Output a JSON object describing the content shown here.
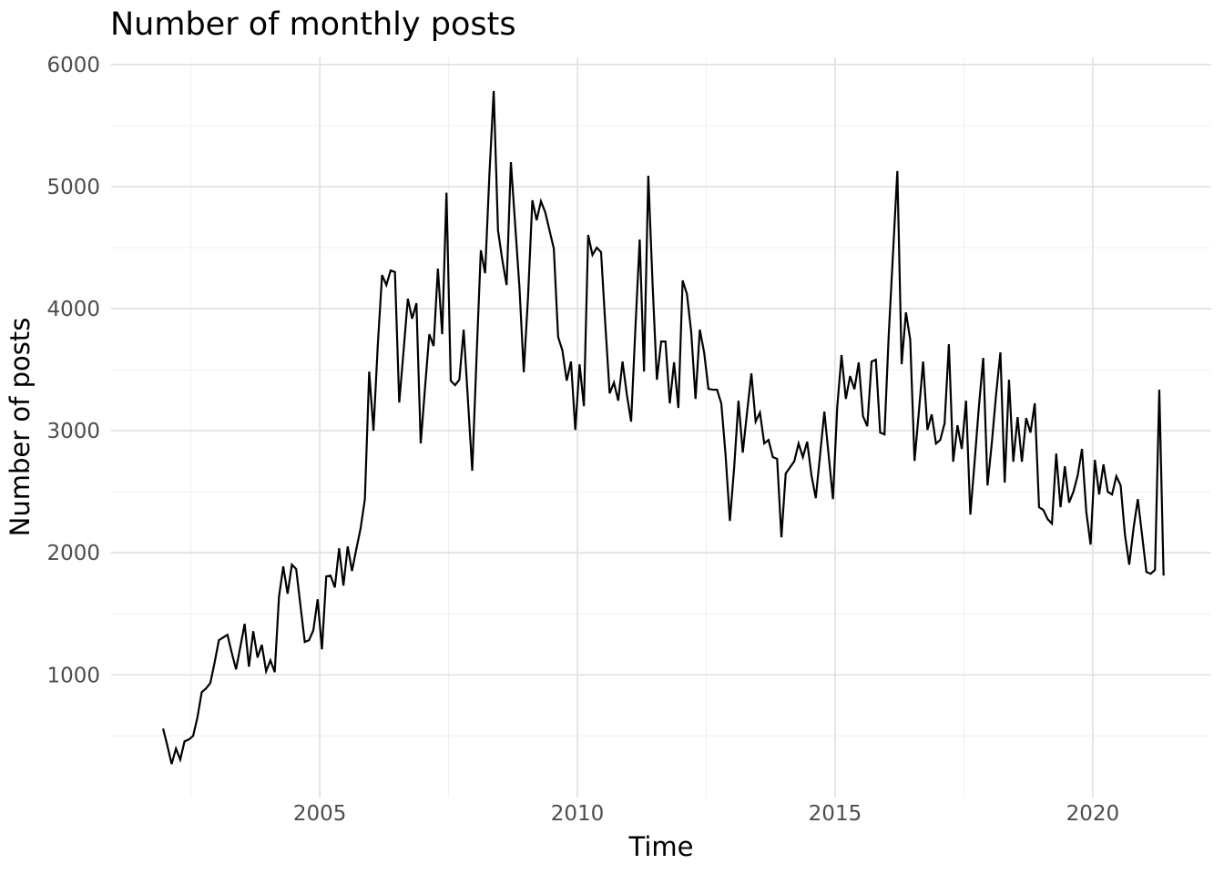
{
  "page": {
    "background": "#ffffff"
  },
  "chart": {
    "title": "Number of monthly posts",
    "x_axis": {
      "title": "Time",
      "tick_labels": [
        "2005",
        "2010",
        "2015",
        "2020"
      ],
      "tick_values": [
        2005,
        2010,
        2015,
        2020
      ],
      "minor_tick_values": [
        2002.5,
        2007.5,
        2012.5,
        2017.5
      ]
    },
    "y_axis": {
      "title": "Number of posts",
      "tick_labels": [
        "1000",
        "2000",
        "3000",
        "4000",
        "5000",
        "6000"
      ],
      "tick_values": [
        1000,
        2000,
        3000,
        4000,
        5000,
        6000
      ],
      "minor_tick_values": [
        500,
        1500,
        2500,
        3500,
        4500,
        5500
      ]
    },
    "colors": {
      "line": "#000000",
      "major_grid": "#e3e3e3",
      "minor_grid": "#f0f0f0",
      "tick_text": "#4d4d4d",
      "axis_title_text": "#000000",
      "title_text": "#000000",
      "background": "#ffffff"
    }
  },
  "chart_data": {
    "type": "line",
    "title": "Number of monthly posts",
    "xlabel": "Time",
    "ylabel": "Number of posts",
    "series_name": "monthly posts",
    "frequency": "monthly",
    "start": {
      "year": 2001,
      "month": 12
    },
    "end": {
      "year": 2021,
      "month": 5
    },
    "xlim": [
      2000.95,
      2022.3
    ],
    "ylim": [
      -5,
      6059
    ],
    "grid": true,
    "legend": false,
    "values": [
      560,
      420,
      269,
      396,
      306,
      455,
      470,
      500,
      650,
      858,
      888,
      933,
      1100,
      1284,
      1306,
      1328,
      1180,
      1045,
      1230,
      1418,
      1067,
      1358,
      1142,
      1246,
      1030,
      1119,
      1022,
      1642,
      1888,
      1664,
      1903,
      1866,
      1567,
      1269,
      1284,
      1366,
      1619,
      1209,
      1806,
      1813,
      1716,
      2037,
      1731,
      2052,
      1851,
      2030,
      2200,
      2440,
      3485,
      3000,
      3700,
      4276,
      4194,
      4313,
      4300,
      3231,
      3650,
      4082,
      3918,
      4045,
      2896,
      3350,
      3791,
      3694,
      4328,
      3791,
      4950,
      3410,
      3373,
      3418,
      3828,
      3250,
      2672,
      3600,
      4478,
      4291,
      5100,
      5784,
      4641,
      4400,
      4194,
      5201,
      4687,
      4172,
      3480,
      4100,
      4888,
      4725,
      4880,
      4790,
      4641,
      4492,
      3769,
      3657,
      3410,
      3567,
      3007,
      3544,
      3201,
      4604,
      4440,
      4500,
      4463,
      3866,
      3306,
      3395,
      3246,
      3567,
      3298,
      3075,
      3843,
      4567,
      3485,
      5089,
      4200,
      3418,
      3731,
      3731,
      3224,
      3560,
      3187,
      4231,
      4119,
      3806,
      3261,
      3828,
      3642,
      3343,
      3336,
      3336,
      3224,
      2799,
      2261,
      2700,
      3246,
      2821,
      3150,
      3470,
      3075,
      3149,
      2896,
      2925,
      2784,
      2770,
      2127,
      2649,
      2700,
      2750,
      2896,
      2784,
      2910,
      2634,
      2448,
      2800,
      3157,
      2800,
      2440,
      3194,
      3619,
      3261,
      3448,
      3340,
      3560,
      3119,
      3037,
      3567,
      3582,
      2985,
      2970,
      3790,
      4460,
      5127,
      3545,
      3970,
      3746,
      2753,
      3150,
      3567,
      3007,
      3134,
      2895,
      2925,
      3060,
      3709,
      2746,
      3045,
      2851,
      3246,
      2313,
      2750,
      3200,
      3597,
      2552,
      2900,
      3300,
      3642,
      2575,
      3418,
      2746,
      3112,
      2746,
      3104,
      2985,
      3224,
      2373,
      2351,
      2276,
      2239,
      2813,
      2373,
      2709,
      2411,
      2500,
      2634,
      2851,
      2336,
      2067,
      2761,
      2478,
      2724,
      2500,
      2478,
      2627,
      2552,
      2149,
      1903,
      2200,
      2440,
      2142,
      1843,
      1828,
      1860,
      3336,
      1813
    ]
  }
}
